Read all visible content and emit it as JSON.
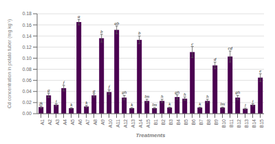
{
  "chart_data": {
    "type": "bar",
    "categories": [
      "A1",
      "A2",
      "A3",
      "A4",
      "A5",
      "A6",
      "A7",
      "A8",
      "A9",
      "A10",
      "A11",
      "A12",
      "A13",
      "A14",
      "A15",
      "B1",
      "B2",
      "B3",
      "B4",
      "B5",
      "B6",
      "B7",
      "B8",
      "B9",
      "B10",
      "B11",
      "B12",
      "B13",
      "B14",
      "B15"
    ],
    "values": [
      0.012,
      0.033,
      0.016,
      0.046,
      0.01,
      0.165,
      0.013,
      0.033,
      0.136,
      0.039,
      0.151,
      0.029,
      0.01,
      0.133,
      0.023,
      0.01,
      0.023,
      0.011,
      0.03,
      0.027,
      0.111,
      0.011,
      0.023,
      0.087,
      0.011,
      0.103,
      0.029,
      0.009,
      0.016,
      0.065
    ],
    "errors": [
      0.002,
      0.004,
      0.002,
      0.005,
      0.001,
      0.005,
      0.002,
      0.003,
      0.007,
      0.004,
      0.007,
      0.004,
      0.001,
      0.007,
      0.003,
      0.001,
      0.003,
      0.001,
      0.004,
      0.003,
      0.01,
      0.001,
      0.003,
      0.006,
      0.001,
      0.01,
      0.004,
      0.001,
      0.002,
      0.007
    ],
    "labels": [
      "jk",
      "g",
      "i",
      "f",
      "k",
      "a",
      "k",
      "g",
      "b",
      "f",
      "ab",
      "gh",
      "k",
      "b",
      "lm",
      "lm",
      "h",
      "k",
      "gh",
      "h",
      "c",
      "k",
      "h",
      "d",
      "lm",
      "cd",
      "gh",
      "l",
      "i",
      "e"
    ],
    "color": "#4a0050",
    "xlabel": "Treatments",
    "ylabel": "Cd concentration in potato tuber (mg kg⁻¹)",
    "ylim": [
      0,
      0.18
    ],
    "yticks": [
      {
        "value": 0,
        "label": "0.00"
      },
      0.02,
      0.04,
      0.06,
      0.08,
      {
        "value": 0.1,
        "label": "0.10"
      },
      0.12,
      0.14,
      0.16,
      0.18
    ],
    "grid": true
  }
}
